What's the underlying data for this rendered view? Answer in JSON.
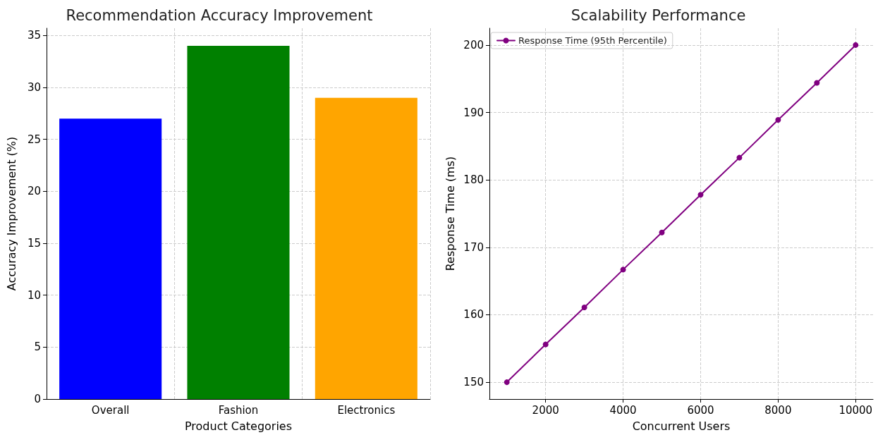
{
  "chart_data": [
    {
      "type": "bar",
      "title": "Recommendation Accuracy Improvement",
      "xlabel": "Product Categories",
      "ylabel": "Accuracy Improvement (%)",
      "categories": [
        "Overall",
        "Fashion",
        "Electronics"
      ],
      "values": [
        27,
        34,
        29
      ],
      "colors": [
        "#0000ff",
        "#008000",
        "#ffa500"
      ],
      "ylim": [
        0,
        35.7
      ],
      "yticks": [
        0,
        5,
        10,
        15,
        20,
        25,
        30,
        35
      ],
      "grid": true,
      "legend": false
    },
    {
      "type": "line",
      "title": "Scalability Performance",
      "xlabel": "Concurrent Users",
      "ylabel": "Response Time (ms)",
      "x": [
        1000,
        2000,
        3000,
        4000,
        5000,
        6000,
        7000,
        8000,
        9000,
        10000
      ],
      "series": [
        {
          "name": "Response Time (95th Percentile)",
          "color": "#800080",
          "values": [
            150,
            155.6,
            161.1,
            166.7,
            172.2,
            177.8,
            183.3,
            188.9,
            194.4,
            200
          ]
        }
      ],
      "xlim": [
        550,
        10450
      ],
      "xticks": [
        2000,
        4000,
        6000,
        8000,
        10000
      ],
      "ylim": [
        147.5,
        202.5
      ],
      "yticks": [
        150,
        160,
        170,
        180,
        190,
        200
      ],
      "grid": true,
      "legend": "top left",
      "marker": "circle",
      "line_style": "solid"
    }
  ]
}
